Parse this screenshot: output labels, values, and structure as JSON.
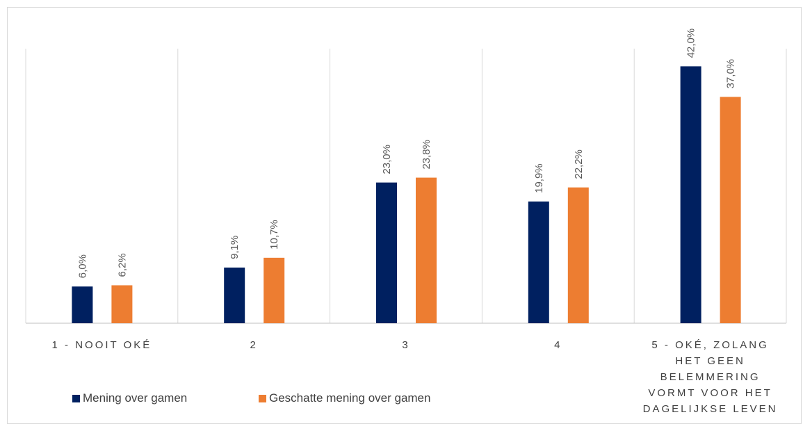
{
  "chart_data": {
    "type": "bar",
    "categories": [
      "1 - NOOIT OKÉ",
      "2",
      "3",
      "4",
      "5 - OKÉ, ZOLANG HET GEEN BELEMMERING VORMT VOOR HET DAGELIJKSE LEVEN"
    ],
    "category_lines": [
      [
        "1 - NOOIT OKÉ"
      ],
      [
        "2"
      ],
      [
        "3"
      ],
      [
        "4"
      ],
      [
        "5 - OKÉ, ZOLANG",
        "HET GEEN",
        "BELEMMERING",
        "VORMT VOOR HET",
        "DAGELIJKSE LEVEN"
      ]
    ],
    "series": [
      {
        "name": "Mening over gamen",
        "values": [
          6.0,
          9.1,
          23.0,
          19.9,
          42.0
        ],
        "labels": [
          "6,0%",
          "9,1%",
          "23,0%",
          "19,9%",
          "42,0%"
        ],
        "color": "#002060"
      },
      {
        "name": "Geschatte mening over gamen",
        "values": [
          6.2,
          10.7,
          23.8,
          22.2,
          37.0
        ],
        "labels": [
          "6,2%",
          "10,7%",
          "23,8%",
          "22,2%",
          "37,0%"
        ],
        "color": "#ED7D31"
      }
    ],
    "ylim": [
      0,
      42
    ],
    "grid": "vertical-category-separators",
    "legend": "bottom-left",
    "title": "",
    "xlabel": "",
    "ylabel": ""
  }
}
